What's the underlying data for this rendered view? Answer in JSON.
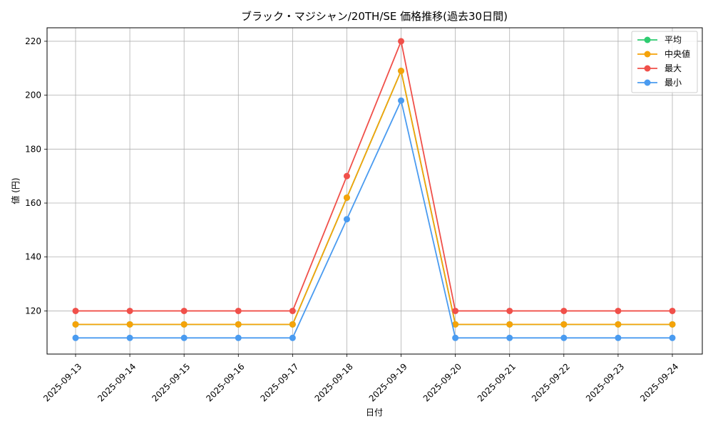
{
  "chart_data": {
    "type": "line",
    "title": "ブラック・マジシャン/20TH/SE 価格推移(過去30日間)",
    "xlabel": "日付",
    "ylabel": "値 (円)",
    "categories": [
      "2025-09-13",
      "2025-09-14",
      "2025-09-15",
      "2025-09-16",
      "2025-09-17",
      "2025-09-18",
      "2025-09-19",
      "2025-09-20",
      "2025-09-21",
      "2025-09-22",
      "2025-09-23",
      "2025-09-24"
    ],
    "yticks": [
      120,
      140,
      160,
      180,
      200,
      220
    ],
    "ylim": [
      104,
      225
    ],
    "grid": true,
    "legend_position": "top-right",
    "series": [
      {
        "name": "平均",
        "color": "#2ecc71",
        "values": [
          115,
          115,
          115,
          115,
          115,
          162,
          209,
          115,
          115,
          115,
          115,
          115
        ]
      },
      {
        "name": "中央値",
        "color": "#f5a30a",
        "values": [
          115,
          115,
          115,
          115,
          115,
          162,
          209,
          115,
          115,
          115,
          115,
          115
        ]
      },
      {
        "name": "最大",
        "color": "#f0504a",
        "values": [
          120,
          120,
          120,
          120,
          120,
          170,
          220,
          120,
          120,
          120,
          120,
          120
        ]
      },
      {
        "name": "最小",
        "color": "#4a9bf0",
        "values": [
          110,
          110,
          110,
          110,
          110,
          154,
          198,
          110,
          110,
          110,
          110,
          110
        ]
      }
    ]
  }
}
